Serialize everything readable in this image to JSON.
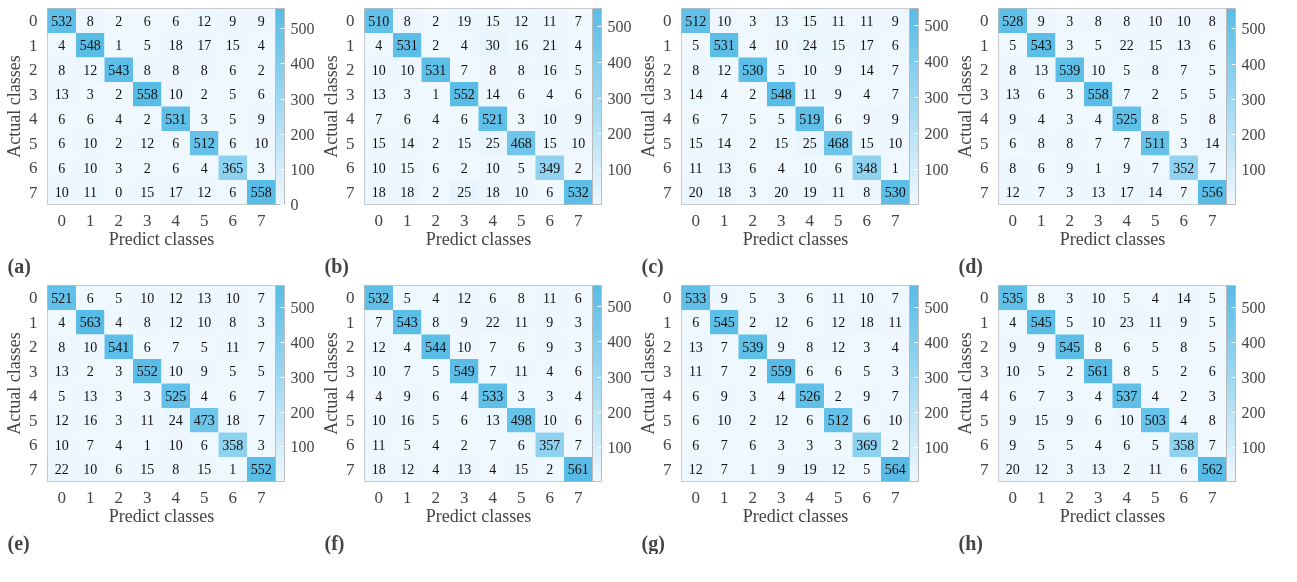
{
  "chart_data": [
    {
      "type": "heatmap",
      "categories": [
        "0",
        "1",
        "2",
        "3",
        "4",
        "5",
        "6",
        "7"
      ],
      "y_categories": [
        "0",
        "1",
        "2",
        "3",
        "4",
        "5",
        "6",
        "7"
      ],
      "xlabel": "Predict classes",
      "ylabel": "Actual classes",
      "annotations": [
        "(a)"
      ],
      "data_labels": true,
      "clim": [
        0,
        558
      ],
      "cticks": [
        0,
        100,
        200,
        300,
        400,
        500
      ],
      "cells": [
        [
          532,
          8,
          2,
          6,
          6,
          12,
          9,
          9
        ],
        [
          4,
          548,
          1,
          5,
          18,
          17,
          15,
          4
        ],
        [
          8,
          12,
          543,
          8,
          8,
          8,
          6,
          2
        ],
        [
          13,
          3,
          2,
          558,
          10,
          2,
          5,
          6
        ],
        [
          6,
          6,
          4,
          2,
          531,
          3,
          5,
          9
        ],
        [
          6,
          10,
          2,
          12,
          6,
          512,
          6,
          10
        ],
        [
          6,
          10,
          3,
          2,
          6,
          4,
          365,
          3
        ],
        [
          10,
          11,
          0,
          15,
          17,
          12,
          6,
          558
        ]
      ]
    },
    {
      "type": "heatmap",
      "categories": [
        "0",
        "1",
        "2",
        "3",
        "4",
        "5",
        "6",
        "7"
      ],
      "y_categories": [
        "0",
        "1",
        "2",
        "3",
        "4",
        "5",
        "6",
        "7"
      ],
      "xlabel": "Predict classes",
      "ylabel": "Actual classes",
      "annotations": [
        "(b)"
      ],
      "data_labels": true,
      "clim": [
        1,
        552
      ],
      "cticks": [
        100,
        200,
        300,
        400,
        500
      ],
      "cells": [
        [
          510,
          8,
          2,
          19,
          15,
          12,
          11,
          7
        ],
        [
          4,
          531,
          2,
          4,
          30,
          16,
          21,
          4
        ],
        [
          10,
          10,
          531,
          7,
          8,
          8,
          16,
          5
        ],
        [
          13,
          3,
          1,
          552,
          14,
          6,
          4,
          6
        ],
        [
          7,
          6,
          4,
          6,
          521,
          3,
          10,
          9
        ],
        [
          15,
          14,
          2,
          15,
          25,
          468,
          15,
          10
        ],
        [
          10,
          15,
          6,
          2,
          10,
          5,
          349,
          2
        ],
        [
          18,
          18,
          2,
          25,
          18,
          10,
          6,
          532
        ]
      ]
    },
    {
      "type": "heatmap",
      "categories": [
        "0",
        "1",
        "2",
        "3",
        "4",
        "5",
        "6",
        "7"
      ],
      "y_categories": [
        "0",
        "1",
        "2",
        "3",
        "4",
        "5",
        "6",
        "7"
      ],
      "xlabel": "Predict classes",
      "ylabel": "Actual classes",
      "annotations": [
        "(c)"
      ],
      "data_labels": true,
      "clim": [
        1,
        548
      ],
      "cticks": [
        100,
        200,
        300,
        400,
        500
      ],
      "cells": [
        [
          512,
          10,
          3,
          13,
          15,
          11,
          11,
          9
        ],
        [
          5,
          531,
          4,
          10,
          24,
          15,
          17,
          6
        ],
        [
          8,
          12,
          530,
          5,
          10,
          9,
          14,
          7
        ],
        [
          14,
          4,
          2,
          548,
          11,
          9,
          4,
          7
        ],
        [
          6,
          7,
          5,
          5,
          519,
          6,
          9,
          9
        ],
        [
          15,
          14,
          2,
          15,
          25,
          468,
          15,
          10
        ],
        [
          11,
          13,
          6,
          4,
          10,
          6,
          348,
          1
        ],
        [
          20,
          18,
          3,
          20,
          19,
          11,
          8,
          530
        ]
      ]
    },
    {
      "type": "heatmap",
      "categories": [
        "0",
        "1",
        "2",
        "3",
        "4",
        "5",
        "6",
        "7"
      ],
      "y_categories": [
        "0",
        "1",
        "2",
        "3",
        "4",
        "5",
        "6",
        "7"
      ],
      "xlabel": "Predict classes",
      "ylabel": "Actual classes",
      "annotations": [
        "(d)"
      ],
      "data_labels": true,
      "clim": [
        1,
        558
      ],
      "cticks": [
        100,
        200,
        300,
        400,
        500
      ],
      "cells": [
        [
          528,
          9,
          3,
          8,
          8,
          10,
          10,
          8
        ],
        [
          5,
          543,
          3,
          5,
          22,
          15,
          13,
          6
        ],
        [
          8,
          13,
          539,
          10,
          5,
          8,
          7,
          5
        ],
        [
          13,
          6,
          3,
          558,
          7,
          2,
          5,
          5
        ],
        [
          9,
          4,
          3,
          4,
          525,
          8,
          5,
          8
        ],
        [
          6,
          8,
          8,
          7,
          7,
          511,
          3,
          14
        ],
        [
          8,
          6,
          9,
          1,
          9,
          7,
          352,
          7
        ],
        [
          12,
          7,
          3,
          13,
          17,
          14,
          7,
          556
        ]
      ]
    },
    {
      "type": "heatmap",
      "categories": [
        "0",
        "1",
        "2",
        "3",
        "4",
        "5",
        "6",
        "7"
      ],
      "y_categories": [
        "0",
        "1",
        "2",
        "3",
        "4",
        "5",
        "6",
        "7"
      ],
      "xlabel": "Predict classes",
      "ylabel": "Actual classes",
      "annotations": [
        "(e)"
      ],
      "data_labels": true,
      "clim": [
        1,
        563
      ],
      "cticks": [
        100,
        200,
        300,
        400,
        500
      ],
      "cells": [
        [
          521,
          6,
          5,
          10,
          12,
          13,
          10,
          7
        ],
        [
          4,
          563,
          4,
          8,
          12,
          10,
          8,
          3
        ],
        [
          8,
          10,
          541,
          6,
          7,
          5,
          11,
          7
        ],
        [
          13,
          2,
          3,
          552,
          10,
          9,
          5,
          5
        ],
        [
          5,
          13,
          3,
          3,
          525,
          4,
          6,
          7
        ],
        [
          12,
          16,
          3,
          11,
          24,
          473,
          18,
          7
        ],
        [
          10,
          7,
          4,
          1,
          10,
          6,
          358,
          3
        ],
        [
          22,
          10,
          6,
          15,
          8,
          15,
          1,
          552
        ]
      ]
    },
    {
      "type": "heatmap",
      "categories": [
        "0",
        "1",
        "2",
        "3",
        "4",
        "5",
        "6",
        "7"
      ],
      "y_categories": [
        "0",
        "1",
        "2",
        "3",
        "4",
        "5",
        "6",
        "7"
      ],
      "xlabel": "Predict classes",
      "ylabel": "Actual classes",
      "annotations": [
        "(f)"
      ],
      "data_labels": true,
      "clim": [
        2,
        561
      ],
      "cticks": [
        100,
        200,
        300,
        400,
        500
      ],
      "cells": [
        [
          532,
          5,
          4,
          12,
          6,
          8,
          11,
          6
        ],
        [
          7,
          543,
          8,
          9,
          22,
          11,
          9,
          3
        ],
        [
          12,
          4,
          544,
          10,
          7,
          6,
          9,
          3
        ],
        [
          10,
          7,
          5,
          549,
          7,
          11,
          4,
          6
        ],
        [
          4,
          9,
          6,
          4,
          533,
          3,
          3,
          4
        ],
        [
          10,
          16,
          5,
          6,
          13,
          498,
          10,
          6
        ],
        [
          11,
          5,
          4,
          2,
          7,
          6,
          357,
          7
        ],
        [
          18,
          12,
          4,
          13,
          4,
          15,
          2,
          561
        ]
      ]
    },
    {
      "type": "heatmap",
      "categories": [
        "0",
        "1",
        "2",
        "3",
        "4",
        "5",
        "6",
        "7"
      ],
      "y_categories": [
        "0",
        "1",
        "2",
        "3",
        "4",
        "5",
        "6",
        "7"
      ],
      "xlabel": "Predict classes",
      "ylabel": "Actual classes",
      "annotations": [
        "(g)"
      ],
      "data_labels": true,
      "clim": [
        1,
        564
      ],
      "cticks": [
        100,
        200,
        300,
        400,
        500
      ],
      "cells": [
        [
          533,
          9,
          5,
          3,
          6,
          11,
          10,
          7
        ],
        [
          6,
          545,
          2,
          12,
          6,
          12,
          18,
          11
        ],
        [
          13,
          7,
          539,
          9,
          8,
          12,
          3,
          4
        ],
        [
          11,
          7,
          2,
          559,
          6,
          6,
          5,
          3
        ],
        [
          6,
          9,
          3,
          4,
          526,
          2,
          9,
          7
        ],
        [
          6,
          10,
          2,
          12,
          6,
          512,
          6,
          10
        ],
        [
          6,
          7,
          6,
          3,
          3,
          3,
          369,
          2
        ],
        [
          12,
          7,
          1,
          9,
          19,
          12,
          5,
          564
        ]
      ]
    },
    {
      "type": "heatmap",
      "categories": [
        "0",
        "1",
        "2",
        "3",
        "4",
        "5",
        "6",
        "7"
      ],
      "y_categories": [
        "0",
        "1",
        "2",
        "3",
        "4",
        "5",
        "6",
        "7"
      ],
      "xlabel": "Predict classes",
      "ylabel": "Actual classes",
      "annotations": [
        "(h)"
      ],
      "data_labels": true,
      "clim": [
        2,
        562
      ],
      "cticks": [
        100,
        200,
        300,
        400,
        500
      ],
      "cells": [
        [
          535,
          8,
          3,
          10,
          5,
          4,
          14,
          5
        ],
        [
          4,
          545,
          5,
          10,
          23,
          11,
          9,
          5
        ],
        [
          9,
          9,
          545,
          8,
          6,
          5,
          8,
          5
        ],
        [
          10,
          5,
          2,
          561,
          8,
          5,
          2,
          6
        ],
        [
          6,
          7,
          3,
          4,
          537,
          4,
          2,
          3
        ],
        [
          9,
          15,
          9,
          6,
          10,
          503,
          4,
          8
        ],
        [
          9,
          5,
          5,
          4,
          6,
          5,
          358,
          7
        ],
        [
          20,
          12,
          3,
          13,
          2,
          11,
          6,
          562
        ]
      ]
    }
  ]
}
